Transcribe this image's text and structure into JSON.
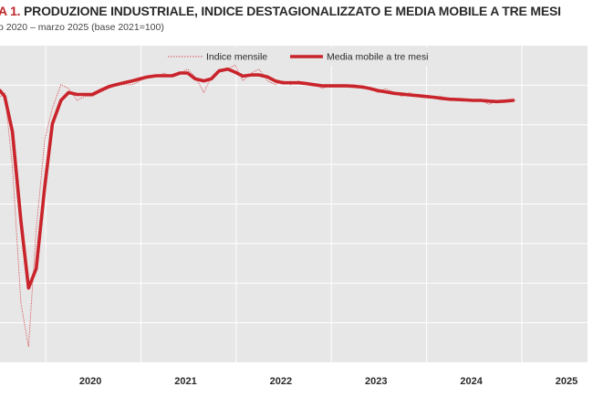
{
  "header": {
    "title_prefix": "A 1.",
    "title_rest": " PRODUZIONE INDUSTRIALE, INDICE DESTAGIONALIZZATO E MEDIA MOBILE A TRE MESI",
    "subtitle": "o 2020 – marzo 2025 (base 2021=100)"
  },
  "colors": {
    "plot_bg": "#e7e7e7",
    "grid": "#ffffff",
    "series_main": "#c9242b",
    "series_thin": "#d84c52",
    "text": "#2a2a2a"
  },
  "chart_data": {
    "type": "line",
    "x_tick_labels": [
      "2020",
      "2021",
      "2022",
      "2023",
      "2024",
      "2025"
    ],
    "grid": true,
    "legend_position": "top-center",
    "series": [
      {
        "name": "Indice mensile",
        "style": "thin-dotted",
        "points": [
          [
            2019.4,
            94
          ],
          [
            2019.45,
            95
          ],
          [
            2019.53,
            76
          ],
          [
            2019.62,
            41
          ],
          [
            2019.7,
            30
          ],
          [
            2019.78,
            60
          ],
          [
            2019.87,
            83
          ],
          [
            2019.95,
            91
          ],
          [
            2020.04,
            97
          ],
          [
            2020.12,
            96
          ],
          [
            2020.21,
            93
          ],
          [
            2020.29,
            94
          ],
          [
            2020.37,
            94
          ],
          [
            2020.45,
            95
          ],
          [
            2020.54,
            96
          ],
          [
            2020.62,
            97
          ],
          [
            2020.7,
            97
          ],
          [
            2020.79,
            97
          ],
          [
            2020.87,
            98
          ],
          [
            2020.95,
            99
          ],
          [
            2021.04,
            99
          ],
          [
            2021.12,
            100
          ],
          [
            2021.21,
            99
          ],
          [
            2021.29,
            100
          ],
          [
            2021.37,
            101
          ],
          [
            2021.45,
            99
          ],
          [
            2021.54,
            95
          ],
          [
            2021.62,
            99
          ],
          [
            2021.7,
            101
          ],
          [
            2021.79,
            101
          ],
          [
            2021.87,
            102
          ],
          [
            2021.95,
            98
          ],
          [
            2022.04,
            100
          ],
          [
            2022.12,
            101
          ],
          [
            2022.21,
            98
          ],
          [
            2022.29,
            97
          ],
          [
            2022.37,
            98
          ],
          [
            2022.45,
            97
          ],
          [
            2022.54,
            98
          ],
          [
            2022.62,
            97
          ],
          [
            2022.7,
            97
          ],
          [
            2022.79,
            96
          ],
          [
            2022.87,
            97
          ],
          [
            2022.95,
            97
          ],
          [
            2023.04,
            97
          ],
          [
            2023.12,
            97
          ],
          [
            2023.21,
            96
          ],
          [
            2023.29,
            96
          ],
          [
            2023.37,
            95
          ],
          [
            2023.45,
            96
          ],
          [
            2023.54,
            95
          ],
          [
            2023.62,
            94
          ],
          [
            2023.7,
            95
          ],
          [
            2023.79,
            94
          ],
          [
            2023.87,
            94
          ],
          [
            2023.95,
            94
          ],
          [
            2024.04,
            94
          ],
          [
            2024.12,
            93
          ],
          [
            2024.21,
            93
          ],
          [
            2024.29,
            93
          ],
          [
            2024.37,
            93
          ],
          [
            2024.45,
            93
          ],
          [
            2024.54,
            92
          ],
          [
            2024.62,
            93
          ],
          [
            2024.7,
            92.5
          ],
          [
            2024.79,
            93
          ]
        ]
      },
      {
        "name": "Media mobile a tre mesi",
        "style": "thick-solid",
        "points": [
          [
            2019.4,
            95.5
          ],
          [
            2019.45,
            94
          ],
          [
            2019.53,
            85
          ],
          [
            2019.62,
            62
          ],
          [
            2019.7,
            45
          ],
          [
            2019.78,
            50
          ],
          [
            2019.87,
            71
          ],
          [
            2019.95,
            87
          ],
          [
            2020.04,
            93
          ],
          [
            2020.12,
            95
          ],
          [
            2020.21,
            94.5
          ],
          [
            2020.29,
            94.5
          ],
          [
            2020.37,
            94.5
          ],
          [
            2020.45,
            95.5
          ],
          [
            2020.54,
            96.5
          ],
          [
            2020.62,
            97
          ],
          [
            2020.7,
            97.5
          ],
          [
            2020.79,
            98
          ],
          [
            2020.87,
            98.5
          ],
          [
            2020.95,
            99
          ],
          [
            2021.04,
            99.3
          ],
          [
            2021.12,
            99.3
          ],
          [
            2021.21,
            99.3
          ],
          [
            2021.29,
            100
          ],
          [
            2021.37,
            100
          ],
          [
            2021.45,
            98.5
          ],
          [
            2021.54,
            98
          ],
          [
            2021.62,
            98.5
          ],
          [
            2021.7,
            100.5
          ],
          [
            2021.79,
            101
          ],
          [
            2021.87,
            100.2
          ],
          [
            2021.95,
            99.2
          ],
          [
            2022.04,
            99.5
          ],
          [
            2022.12,
            99.5
          ],
          [
            2022.21,
            99
          ],
          [
            2022.29,
            98
          ],
          [
            2022.37,
            97.5
          ],
          [
            2022.45,
            97.5
          ],
          [
            2022.54,
            97.5
          ],
          [
            2022.62,
            97.3
          ],
          [
            2022.7,
            97
          ],
          [
            2022.79,
            96.7
          ],
          [
            2022.87,
            96.7
          ],
          [
            2022.95,
            96.7
          ],
          [
            2023.04,
            96.7
          ],
          [
            2023.12,
            96.6
          ],
          [
            2023.21,
            96.4
          ],
          [
            2023.29,
            96
          ],
          [
            2023.37,
            95.5
          ],
          [
            2023.45,
            95.2
          ],
          [
            2023.54,
            94.8
          ],
          [
            2023.62,
            94.6
          ],
          [
            2023.7,
            94.4
          ],
          [
            2023.79,
            94.2
          ],
          [
            2023.87,
            94
          ],
          [
            2023.95,
            93.8
          ],
          [
            2024.04,
            93.5
          ],
          [
            2024.12,
            93.3
          ],
          [
            2024.21,
            93.2
          ],
          [
            2024.29,
            93.1
          ],
          [
            2024.37,
            93
          ],
          [
            2024.45,
            93
          ],
          [
            2024.54,
            92.8
          ],
          [
            2024.62,
            92.7
          ],
          [
            2024.7,
            92.8
          ],
          [
            2024.79,
            93
          ]
        ]
      }
    ]
  }
}
